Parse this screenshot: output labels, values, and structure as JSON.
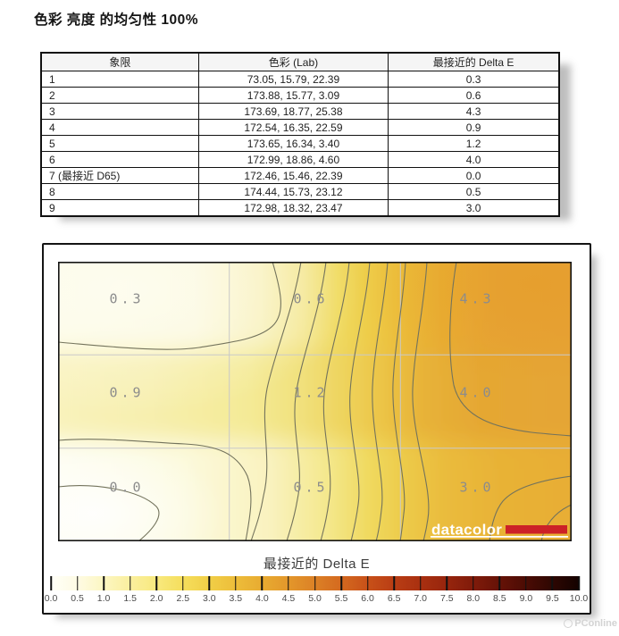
{
  "title": "色彩 亮度 的均匀性 100%",
  "table": {
    "headers": [
      "象限",
      "色彩 (Lab)",
      "最接近的 Delta E"
    ],
    "rows": [
      [
        "1",
        "73.05, 15.79, 22.39",
        "0.3"
      ],
      [
        "2",
        "173.88, 15.77, 3.09",
        "0.6"
      ],
      [
        "3",
        "173.69, 18.77, 25.38",
        "4.3"
      ],
      [
        "4",
        "172.54, 16.35, 22.59",
        "0.9"
      ],
      [
        "5",
        "173.65, 16.34, 3.40",
        "1.2"
      ],
      [
        "6",
        "172.99, 18.86, 4.60",
        "4.0"
      ],
      [
        "7 (最接近 D65)",
        "172.46, 15.46, 22.39",
        "0.0"
      ],
      [
        "8",
        "174.44, 15.73, 23.12",
        "0.5"
      ],
      [
        "9",
        "172.98, 18.32, 23.47",
        "3.0"
      ]
    ]
  },
  "chart_data": {
    "type": "heatmap",
    "title": "最接近的 Delta E",
    "description": "3x3 screen-uniformity contour map of closest Delta E per quadrant",
    "grid_rows": 3,
    "grid_cols": 3,
    "cell_values": [
      [
        0.3,
        0.6,
        4.3
      ],
      [
        0.9,
        1.2,
        4.0
      ],
      [
        0.0,
        0.5,
        3.0
      ]
    ],
    "colorbar_label": "最接近的 Delta E",
    "colorbar_range": [
      0.0,
      10.0
    ],
    "colorbar_tick_step": 0.5,
    "legend_position": "bottom",
    "grid_lines": true
  },
  "heatmap": {
    "labels": [
      [
        "0.3",
        "0.6",
        "4.3"
      ],
      [
        "0.9",
        "1.2",
        "4.0"
      ],
      [
        "0.0",
        "0.5",
        "3.0"
      ]
    ],
    "logo_text": "datacolor"
  },
  "colorbar": {
    "title": "最接近的 Delta E",
    "ticks": [
      "0.0",
      "0.5",
      "1.0",
      "1.5",
      "2.0",
      "2.5",
      "3.0",
      "3.5",
      "4.0",
      "4.5",
      "5.0",
      "5.5",
      "6.0",
      "6.5",
      "7.0",
      "7.5",
      "8.0",
      "8.5",
      "9.0",
      "9.5",
      "10.0"
    ]
  },
  "watermark": "PConline",
  "colors": {
    "logo_red": "#CC2127",
    "scale_start": "#FFFFF8",
    "scale_mid": "#DC8126",
    "scale_end": "#140200",
    "heat_low": "#FDFCEE",
    "heat_high": "#E6A135",
    "contour_line": "#73735C",
    "grid_line": "#C9C9C9"
  }
}
